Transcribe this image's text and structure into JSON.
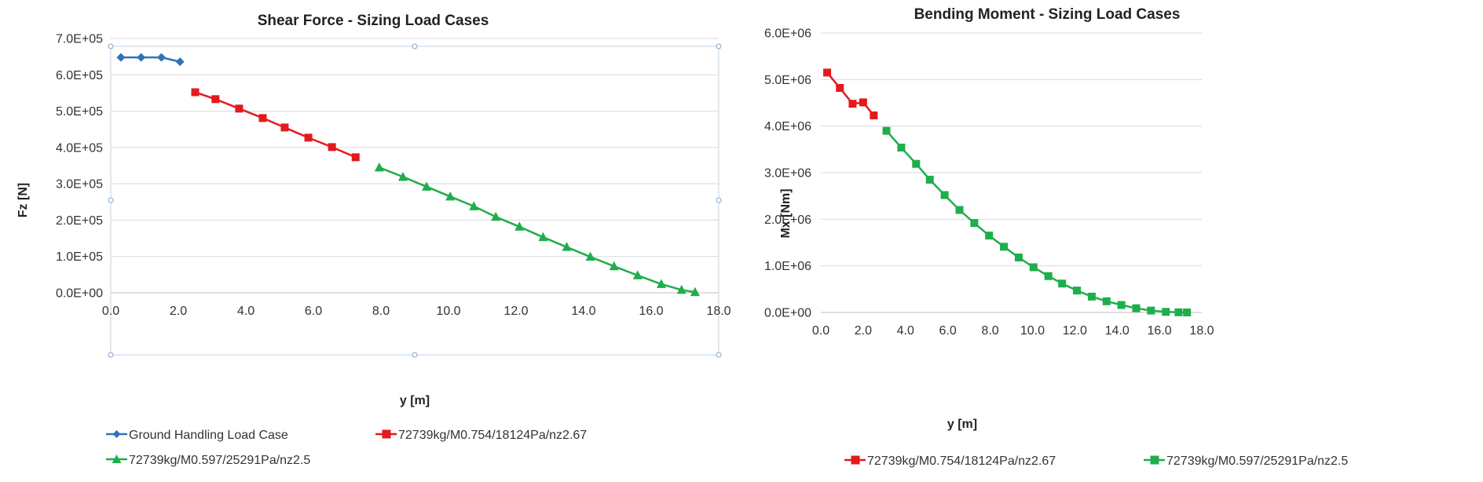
{
  "chart_data": [
    {
      "type": "line",
      "title": "Shear Force - Sizing Load Cases",
      "xlabel": "y [m]",
      "ylabel": "Fz [N]",
      "xlim": [
        0,
        18
      ],
      "ylim": [
        0,
        700000
      ],
      "x_ticks": [
        0,
        2,
        4,
        6,
        8,
        10,
        12,
        14,
        16,
        18
      ],
      "x_tick_labels": [
        "0.0",
        "2.0",
        "4.0",
        "6.0",
        "8.0",
        "10.0",
        "12.0",
        "14.0",
        "16.0",
        "18.0"
      ],
      "y_ticks": [
        0,
        100000,
        200000,
        300000,
        400000,
        500000,
        600000,
        700000
      ],
      "y_tick_labels": [
        "0.0E+00",
        "1.0E+05",
        "2.0E+05",
        "3.0E+05",
        "4.0E+05",
        "5.0E+05",
        "6.0E+05",
        "7.0E+05"
      ],
      "grid": "horizontal",
      "legend": "bottom",
      "series": [
        {
          "name": "Ground Handling Load Case",
          "color": "#2e75b6",
          "marker": "diamond",
          "x": [
            0.3,
            0.9,
            1.5,
            2.05
          ],
          "y": [
            648000,
            648000,
            648000,
            636000
          ]
        },
        {
          "name": "72739kg/M0.754/18124Pa/nz2.67",
          "color": "#e31a1c",
          "marker": "square",
          "x": [
            2.5,
            3.1,
            3.8,
            4.5,
            5.15,
            5.85,
            6.55,
            7.25
          ],
          "y": [
            552000,
            533000,
            507000,
            481000,
            455000,
            427000,
            401000,
            373000
          ]
        },
        {
          "name": "72739kg/M0.597/25291Pa/nz2.5",
          "color": "#1fae4b",
          "marker": "triangle",
          "x": [
            7.95,
            8.65,
            9.35,
            10.05,
            10.75,
            11.4,
            12.1,
            12.8,
            13.5,
            14.2,
            14.9,
            15.6,
            16.3,
            16.9,
            17.3
          ],
          "y": [
            345000,
            319000,
            292000,
            265000,
            238000,
            209000,
            182000,
            153000,
            126000,
            99000,
            73000,
            48000,
            24000,
            8000,
            2000
          ]
        }
      ]
    },
    {
      "type": "line",
      "title": "Bending Moment - Sizing Load Cases",
      "xlabel": "y [m]",
      "ylabel": "Mx [Nm]",
      "xlim": [
        0,
        18
      ],
      "ylim": [
        0,
        6000000
      ],
      "x_ticks": [
        0,
        2,
        4,
        6,
        8,
        10,
        12,
        14,
        16,
        18
      ],
      "x_tick_labels": [
        "0.0",
        "2.0",
        "4.0",
        "6.0",
        "8.0",
        "10.0",
        "12.0",
        "14.0",
        "16.0",
        "18.0"
      ],
      "y_ticks": [
        0,
        1000000,
        2000000,
        3000000,
        4000000,
        5000000,
        6000000
      ],
      "y_tick_labels": [
        "0.0E+00",
        "1.0E+06",
        "2.0E+06",
        "3.0E+06",
        "4.0E+06",
        "5.0E+06",
        "6.0E+06"
      ],
      "grid": "horizontal",
      "legend": "bottom",
      "series": [
        {
          "name": "72739kg/M0.754/18124Pa/nz2.67",
          "color": "#e31a1c",
          "marker": "square",
          "x": [
            0.3,
            0.9,
            1.5,
            2.0,
            2.5
          ],
          "y": [
            5150000,
            4820000,
            4480000,
            4510000,
            4230000
          ]
        },
        {
          "name": "72739kg/M0.597/25291Pa/nz2.5",
          "color": "#1fae4b",
          "marker": "square",
          "x": [
            3.1,
            3.8,
            4.5,
            5.15,
            5.85,
            6.55,
            7.25,
            7.95,
            8.65,
            9.35,
            10.05,
            10.75,
            11.4,
            12.1,
            12.8,
            13.5,
            14.2,
            14.9,
            15.6,
            16.3,
            16.9,
            17.3
          ],
          "y": [
            3900000,
            3540000,
            3190000,
            2850000,
            2520000,
            2200000,
            1920000,
            1650000,
            1410000,
            1180000,
            970000,
            780000,
            620000,
            470000,
            340000,
            240000,
            160000,
            90000,
            40000,
            12000,
            3000,
            0
          ]
        }
      ]
    }
  ]
}
